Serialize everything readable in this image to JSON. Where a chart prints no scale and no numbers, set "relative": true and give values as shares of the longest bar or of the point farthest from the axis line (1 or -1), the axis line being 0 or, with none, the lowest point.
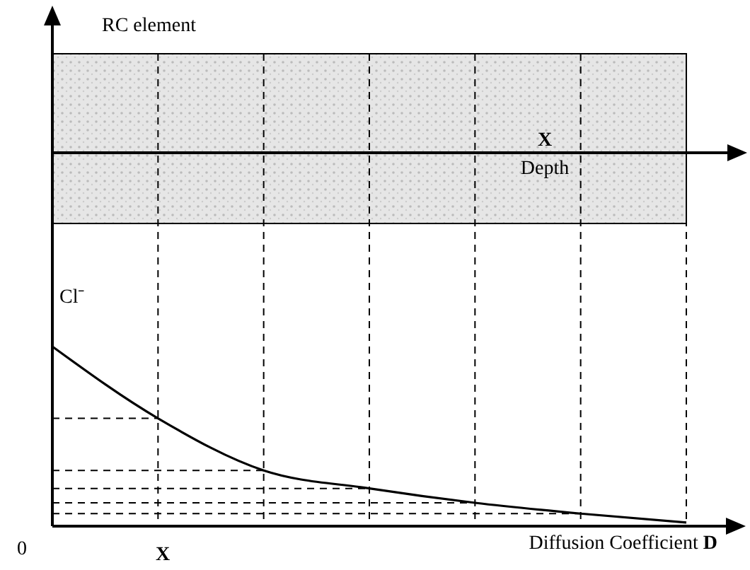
{
  "chart_data": {
    "type": "line",
    "title": "RC element",
    "ylabel": "Cl⁻",
    "xlabel": "Diffusion Coefficient D",
    "relative": true,
    "categories": [
      null,
      null,
      null,
      null,
      null,
      null,
      null
    ],
    "series": [
      {
        "color": "#000000",
        "values": [
          1,
          0.6,
          0.31,
          0.21,
          0.13,
          0.07,
          0.02
        ]
      }
    ],
    "annotations": [
      "0",
      "X",
      "X",
      "Depth"
    ],
    "ref_lines": [
      {
        "axis": "y",
        "value": 0.6,
        "line_style": "dashed"
      },
      {
        "axis": "y",
        "value": 0.31,
        "line_style": "dashed"
      },
      {
        "axis": "y",
        "value": 0.21,
        "line_style": "dashed"
      },
      {
        "axis": "y",
        "value": 0.13,
        "line_style": "dashed"
      },
      {
        "axis": "y",
        "value": 0.07,
        "line_style": "dashed"
      }
    ],
    "marker": "none",
    "line_style": "solid",
    "grid": "x"
  }
}
